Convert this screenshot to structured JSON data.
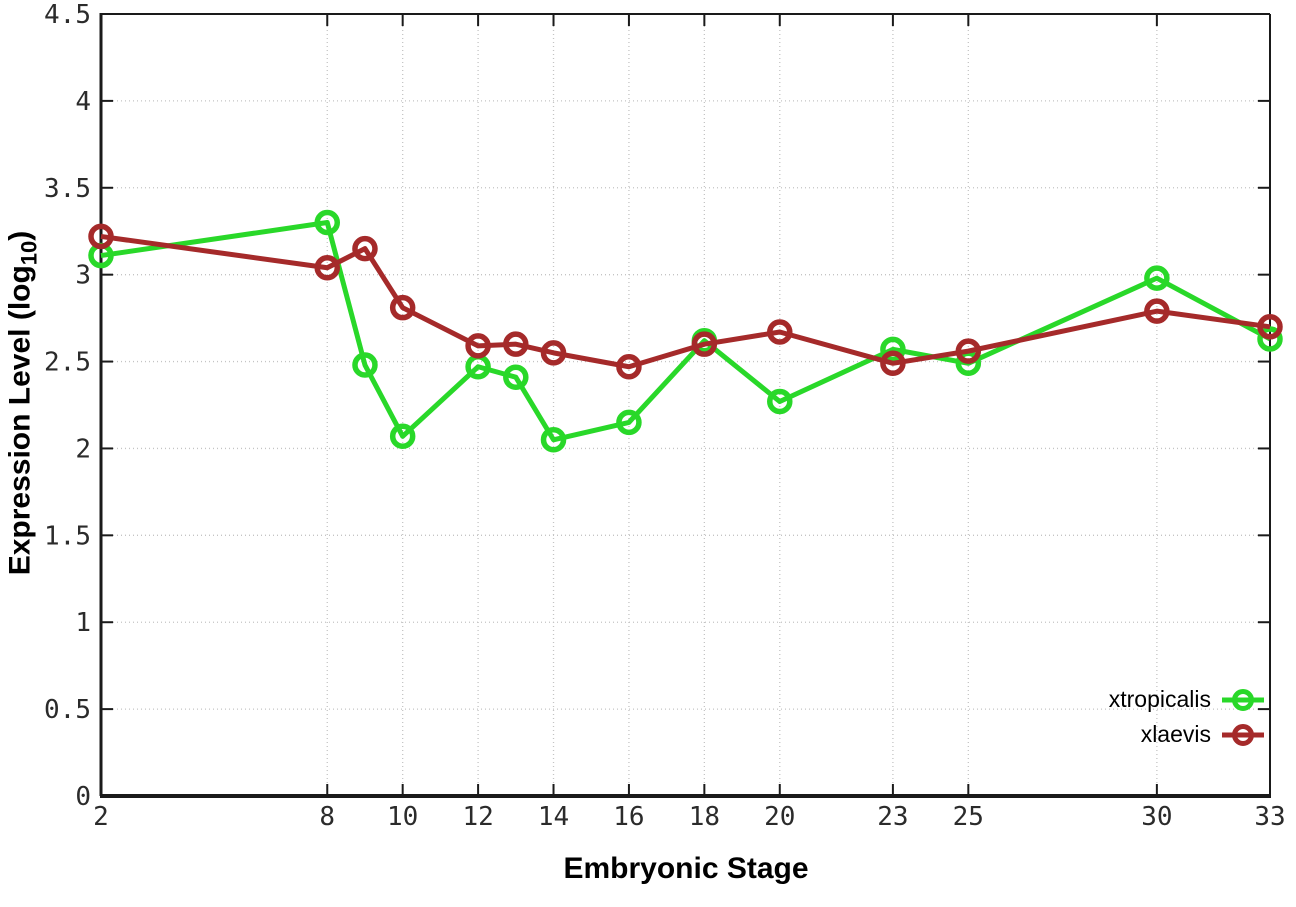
{
  "figure": {
    "background": "#ffffff",
    "axis_color": "#1a1a1a",
    "grid_color": "#c4c4c4",
    "tick_label_color": "#2b2b2b",
    "xlabel": "Embryonic Stage",
    "ylabel_display": {
      "pre": "Expression Level (log",
      "sub": "10",
      "post": ")"
    }
  },
  "chart_data": {
    "type": "line",
    "title": "",
    "xlabel": "Embryonic Stage",
    "ylabel": "Expression Level (log10)",
    "xlim": [
      2,
      33
    ],
    "ylim": [
      0,
      4.5
    ],
    "grid": true,
    "legend_position": "inside bottom-right",
    "x": [
      2,
      8,
      9,
      10,
      12,
      13,
      14,
      16,
      18,
      20,
      23,
      25,
      30,
      33
    ],
    "x_tick_values": [
      2,
      8,
      10,
      12,
      14,
      16,
      18,
      20,
      23,
      25,
      30,
      33
    ],
    "x_tick_labels": [
      "2",
      "8",
      "10",
      "12",
      "14",
      "16",
      "18",
      "20",
      "23",
      "25",
      "30",
      "33"
    ],
    "y_tick_values": [
      0,
      0.5,
      1,
      1.5,
      2,
      2.5,
      3,
      3.5,
      4,
      4.5
    ],
    "y_tick_labels": [
      "0",
      "0.5",
      "1",
      "1.5",
      "2",
      "2.5",
      "3",
      "3.5",
      "4",
      "4.5"
    ],
    "series": [
      {
        "name": "xtropicalis",
        "color": "#29d829",
        "marker": "open-circle",
        "values": [
          3.11,
          3.3,
          2.48,
          2.07,
          2.47,
          2.41,
          2.05,
          2.15,
          2.62,
          2.27,
          2.57,
          2.49,
          2.98,
          2.63
        ]
      },
      {
        "name": "xlaevis",
        "color": "#a52a2a",
        "marker": "open-circle",
        "values": [
          3.22,
          3.04,
          3.15,
          2.81,
          2.59,
          2.6,
          2.55,
          2.47,
          2.6,
          2.67,
          2.49,
          2.56,
          2.79,
          2.7
        ]
      }
    ]
  }
}
